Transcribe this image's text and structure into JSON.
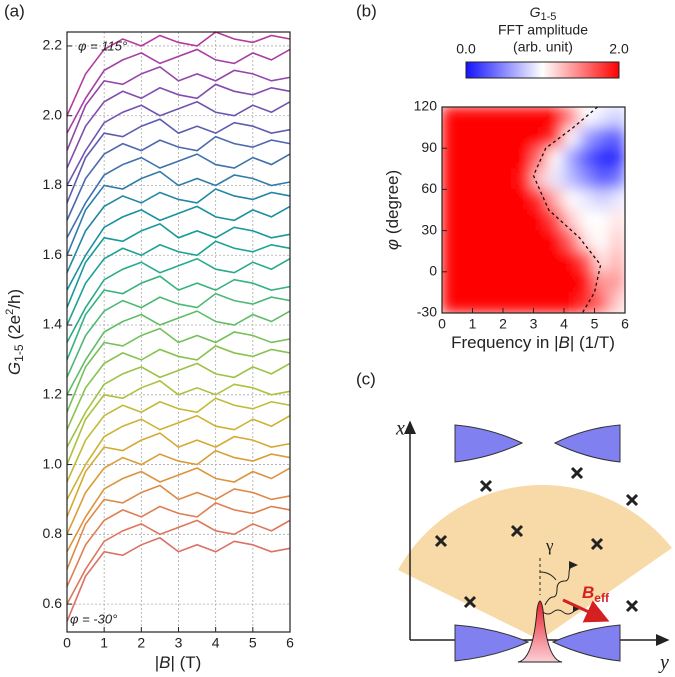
{
  "panel_labels": [
    "(a)",
    "(b)",
    "(c)"
  ],
  "chart_data": [
    {
      "type": "line",
      "x_label": {
        "left": "|",
        "symbol": "B",
        "right": "| (T)"
      },
      "y_label": {
        "symbol": "G",
        "subscript": "1-5",
        "unit_start": "(2e",
        "unit_power": "2",
        "unit_end": "/h)"
      },
      "annotations": [
        "φ = 115°",
        "φ = -30°"
      ],
      "xlim": [
        0,
        6
      ],
      "ylim": [
        0.52,
        2.24
      ],
      "xticks": [
        0,
        1,
        2,
        3,
        4,
        5,
        6
      ],
      "yticks": [
        0.6,
        0.8,
        {
          "value": 1,
          "label": "1.0"
        },
        1.2,
        1.4,
        1.6,
        1.8,
        {
          "value": 2,
          "label": "2.0"
        },
        2.2
      ],
      "grid": true,
      "x": [
        0,
        0.5,
        1,
        1.5,
        2,
        2.5,
        3,
        3.5,
        4,
        4.5,
        5,
        5.5,
        6
      ],
      "series": [
        {
          "color": "#b5399e",
          "values": [
            2.0,
            2.12,
            2.19,
            2.22,
            2.2,
            2.23,
            2.21,
            2.2,
            2.24,
            2.22,
            2.21,
            2.23,
            2.22
          ]
        },
        {
          "color": "#a53fa5",
          "values": [
            1.95,
            2.05,
            2.13,
            2.16,
            2.18,
            2.15,
            2.17,
            2.19,
            2.16,
            2.15,
            2.18,
            2.16,
            2.19
          ]
        },
        {
          "color": "#9446ab",
          "values": [
            1.9,
            2.03,
            2.1,
            2.09,
            2.12,
            2.14,
            2.1,
            2.12,
            2.1,
            2.13,
            2.12,
            2.1,
            2.11
          ]
        },
        {
          "color": "#824dae",
          "values": [
            1.85,
            1.97,
            2.04,
            2.07,
            2.05,
            2.08,
            2.06,
            2.05,
            2.09,
            2.07,
            2.06,
            2.08,
            2.07
          ]
        },
        {
          "color": "#7055b0",
          "values": [
            1.8,
            1.9,
            1.98,
            2.01,
            2.03,
            2.0,
            2.02,
            2.04,
            2.01,
            2.0,
            2.03,
            2.01,
            2.04
          ]
        },
        {
          "color": "#5e5eb0",
          "values": [
            1.75,
            1.88,
            1.95,
            1.94,
            1.97,
            1.99,
            1.95,
            1.97,
            1.95,
            1.98,
            1.97,
            1.95,
            1.96
          ]
        },
        {
          "color": "#4d68ae",
          "values": [
            1.7,
            1.82,
            1.89,
            1.92,
            1.9,
            1.93,
            1.91,
            1.9,
            1.94,
            1.92,
            1.91,
            1.93,
            1.92
          ]
        },
        {
          "color": "#3e72ab",
          "values": [
            1.65,
            1.75,
            1.83,
            1.86,
            1.88,
            1.85,
            1.87,
            1.89,
            1.86,
            1.85,
            1.88,
            1.86,
            1.89
          ]
        },
        {
          "color": "#307ca8",
          "values": [
            1.6,
            1.73,
            1.8,
            1.79,
            1.82,
            1.84,
            1.8,
            1.82,
            1.8,
            1.83,
            1.82,
            1.8,
            1.81
          ]
        },
        {
          "color": "#2386a4",
          "values": [
            1.55,
            1.67,
            1.74,
            1.77,
            1.75,
            1.78,
            1.76,
            1.75,
            1.79,
            1.77,
            1.76,
            1.78,
            1.77
          ]
        },
        {
          "color": "#1a90a0",
          "values": [
            1.5,
            1.6,
            1.68,
            1.71,
            1.73,
            1.7,
            1.72,
            1.74,
            1.71,
            1.7,
            1.73,
            1.71,
            1.74
          ]
        },
        {
          "color": "#179a9a",
          "values": [
            1.45,
            1.58,
            1.65,
            1.64,
            1.67,
            1.69,
            1.65,
            1.67,
            1.65,
            1.68,
            1.67,
            1.65,
            1.66
          ]
        },
        {
          "color": "#1ca393",
          "values": [
            1.4,
            1.52,
            1.59,
            1.62,
            1.6,
            1.63,
            1.61,
            1.6,
            1.64,
            1.62,
            1.61,
            1.63,
            1.62
          ]
        },
        {
          "color": "#28ab8a",
          "values": [
            1.35,
            1.45,
            1.53,
            1.56,
            1.58,
            1.55,
            1.57,
            1.59,
            1.56,
            1.55,
            1.58,
            1.56,
            1.59
          ]
        },
        {
          "color": "#38b27f",
          "values": [
            1.3,
            1.43,
            1.5,
            1.49,
            1.52,
            1.54,
            1.5,
            1.52,
            1.5,
            1.53,
            1.52,
            1.5,
            1.51
          ]
        },
        {
          "color": "#4cb873",
          "values": [
            1.25,
            1.37,
            1.44,
            1.47,
            1.45,
            1.48,
            1.46,
            1.45,
            1.49,
            1.47,
            1.46,
            1.48,
            1.47
          ]
        },
        {
          "color": "#60bd66",
          "values": [
            1.2,
            1.3,
            1.38,
            1.41,
            1.43,
            1.4,
            1.42,
            1.44,
            1.41,
            1.4,
            1.43,
            1.41,
            1.44
          ]
        },
        {
          "color": "#75c05a",
          "values": [
            1.15,
            1.28,
            1.35,
            1.34,
            1.37,
            1.39,
            1.35,
            1.37,
            1.35,
            1.38,
            1.37,
            1.35,
            1.36
          ]
        },
        {
          "color": "#8ac24f",
          "values": [
            1.1,
            1.22,
            1.29,
            1.32,
            1.3,
            1.33,
            1.31,
            1.3,
            1.34,
            1.32,
            1.31,
            1.33,
            1.32
          ]
        },
        {
          "color": "#9ec245",
          "values": [
            1.05,
            1.15,
            1.23,
            1.26,
            1.28,
            1.25,
            1.27,
            1.29,
            1.26,
            1.25,
            1.28,
            1.26,
            1.29
          ]
        },
        {
          "color": "#b0c03e",
          "values": [
            1.0,
            1.13,
            1.2,
            1.19,
            1.22,
            1.24,
            1.2,
            1.22,
            1.2,
            1.23,
            1.22,
            1.2,
            1.21
          ]
        },
        {
          "color": "#c0bb38",
          "values": [
            0.95,
            1.07,
            1.14,
            1.17,
            1.15,
            1.18,
            1.16,
            1.15,
            1.19,
            1.17,
            1.16,
            1.18,
            1.17
          ]
        },
        {
          "color": "#ccb335",
          "values": [
            0.9,
            1.0,
            1.08,
            1.11,
            1.13,
            1.1,
            1.12,
            1.14,
            1.11,
            1.1,
            1.13,
            1.11,
            1.14
          ]
        },
        {
          "color": "#d5a934",
          "values": [
            0.85,
            0.98,
            1.05,
            1.04,
            1.07,
            1.09,
            1.05,
            1.07,
            1.05,
            1.08,
            1.07,
            1.05,
            1.06
          ]
        },
        {
          "color": "#da9e37",
          "values": [
            0.8,
            0.92,
            0.99,
            1.02,
            1.0,
            1.03,
            1.01,
            1.0,
            1.04,
            1.02,
            1.01,
            1.03,
            1.02
          ]
        },
        {
          "color": "#dd933e",
          "values": [
            0.75,
            0.85,
            0.93,
            0.96,
            0.98,
            0.95,
            0.97,
            0.99,
            0.96,
            0.95,
            0.98,
            0.96,
            0.99
          ]
        },
        {
          "color": "#df8947",
          "values": [
            0.7,
            0.83,
            0.9,
            0.89,
            0.92,
            0.94,
            0.9,
            0.92,
            0.9,
            0.93,
            0.92,
            0.9,
            0.91
          ]
        },
        {
          "color": "#df7f51",
          "values": [
            0.65,
            0.77,
            0.84,
            0.87,
            0.85,
            0.88,
            0.86,
            0.85,
            0.89,
            0.87,
            0.86,
            0.88,
            0.87
          ]
        },
        {
          "color": "#dd775b",
          "values": [
            0.6,
            0.7,
            0.78,
            0.81,
            0.83,
            0.8,
            0.82,
            0.84,
            0.81,
            0.8,
            0.83,
            0.81,
            0.84
          ]
        },
        {
          "color": "#da7066",
          "values": [
            0.55,
            0.68,
            0.75,
            0.74,
            0.77,
            0.79,
            0.75,
            0.77,
            0.75,
            0.78,
            0.77,
            0.75,
            0.76
          ]
        }
      ]
    },
    {
      "type": "heatmap",
      "colorbar_title": {
        "symbol": "G",
        "subscript": "1-5",
        "line2": "FFT amplitude",
        "line3": "(arb. unit)"
      },
      "x_label": {
        "start": "Frequency in |",
        "symbol": "B",
        "end": "| (1/T)"
      },
      "y_label": {
        "symbol": "φ",
        "text": "(degree)"
      },
      "xlim": [
        0,
        6
      ],
      "ylim": [
        -30,
        120
      ],
      "xticks": [
        0,
        1,
        2,
        3,
        4,
        5,
        6
      ],
      "yticks": [
        -30,
        0,
        30,
        60,
        90,
        120
      ],
      "zlim": [
        0,
        2
      ],
      "zticks": [
        {
          "value": 0,
          "label": "0.0"
        },
        {
          "value": 2,
          "label": "2.0"
        }
      ],
      "colormap": [
        "#1414ff",
        "#ffffff",
        "#ff0000"
      ],
      "x": [
        0.25,
        0.75,
        1.25,
        1.75,
        2.25,
        2.75,
        3.25,
        3.75,
        4.25,
        4.75,
        5.25,
        5.75
      ],
      "y": [
        112.5,
        97.5,
        82.5,
        67.5,
        52.5,
        37.5,
        22.5,
        7.5,
        -7.5,
        -22.5
      ],
      "z": [
        [
          2,
          2,
          2,
          2,
          2,
          2,
          2,
          2,
          1.5,
          1.0,
          0.9,
          0.8
        ],
        [
          2,
          2,
          2,
          2,
          2,
          2,
          2,
          1.8,
          1.0,
          0.6,
          0.4,
          0.3
        ],
        [
          2,
          2,
          2,
          2,
          2,
          2,
          1.5,
          1.0,
          0.6,
          0.3,
          0.1,
          0.1
        ],
        [
          2,
          2,
          2,
          2,
          2,
          1.9,
          1.2,
          0.9,
          0.7,
          0.5,
          0.3,
          0.4
        ],
        [
          2,
          2,
          2,
          2,
          2,
          2,
          1.8,
          1.3,
          1.0,
          0.9,
          0.8,
          0.9
        ],
        [
          2,
          2,
          2,
          2,
          2,
          2,
          2,
          1.7,
          1.2,
          1.0,
          1.0,
          1.1
        ],
        [
          2,
          2,
          2,
          2,
          2,
          2,
          2,
          2,
          1.6,
          1.1,
          1.0,
          1.2
        ],
        [
          2,
          2,
          2,
          2,
          2,
          2,
          2,
          2,
          2,
          1.7,
          1.1,
          1.3
        ],
        [
          2,
          2,
          2,
          2,
          2,
          2,
          2,
          2,
          2,
          2,
          1.4,
          1.4
        ],
        [
          2,
          2,
          2,
          2,
          2,
          2,
          2,
          2,
          2,
          1.8,
          1.6,
          1.2
        ]
      ],
      "boundary": {
        "x": [
          5.1,
          4.3,
          3.4,
          3.0,
          3.5,
          4.5,
          5.2,
          5.0,
          4.6
        ],
        "y": [
          120,
          105,
          90,
          70,
          45,
          25,
          5,
          -15,
          -30
        ]
      }
    }
  ],
  "diagram": {
    "x_axis": "x",
    "y_axis": "y",
    "angle": "γ",
    "field": "B",
    "field_sub": "eff"
  }
}
